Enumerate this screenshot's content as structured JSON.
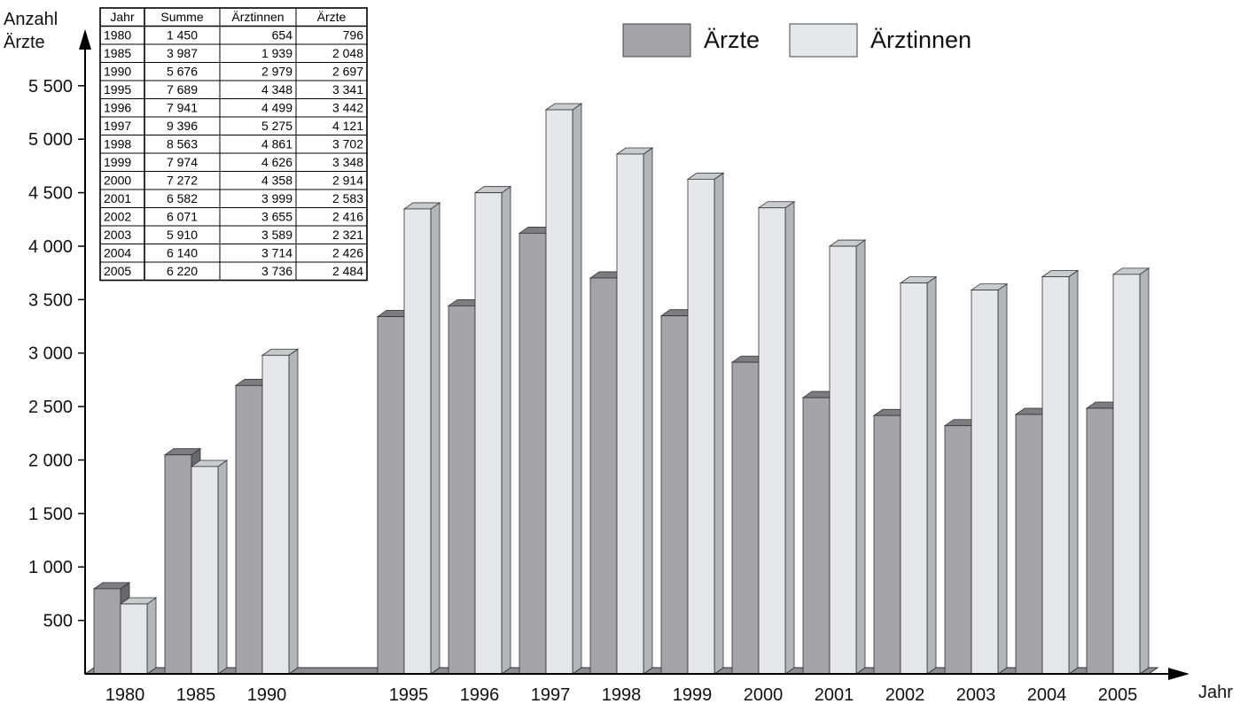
{
  "chart_data": {
    "type": "bar",
    "categories": [
      "1980",
      "1985",
      "1990",
      "1995",
      "1996",
      "1997",
      "1998",
      "1999",
      "2000",
      "2001",
      "2002",
      "2003",
      "2004",
      "2005"
    ],
    "series": [
      {
        "name": "Ärzte",
        "values": [
          796,
          2048,
          2697,
          3341,
          3442,
          4121,
          3702,
          3348,
          2914,
          2583,
          2416,
          2321,
          2426,
          2484
        ],
        "color": "#a4a4a8"
      },
      {
        "name": "Ärztinnen",
        "values": [
          654,
          1939,
          2979,
          4348,
          4499,
          5275,
          4861,
          4626,
          4358,
          3999,
          3655,
          3589,
          3714,
          3736
        ],
        "color": "#e6e7e9"
      }
    ],
    "ylabel_line1": "Anzahl",
    "ylabel_line2": "Ärzte",
    "xlabel": "Jahr",
    "ylim": [
      0,
      5500
    ],
    "yticks": [
      500,
      1000,
      1500,
      2000,
      2500,
      3000,
      3500,
      4000,
      4500,
      5000,
      5500
    ],
    "ytick_labels": [
      "500",
      "1 000",
      "1 500",
      "2 000",
      "2 500",
      "3 000",
      "3 500",
      "4 000",
      "4 500",
      "5 000",
      "5 500"
    ],
    "grid": false,
    "legend_position": "top-right",
    "table": {
      "headers": [
        "Jahr",
        "Summe",
        "Ärztinnen",
        "Ärzte"
      ],
      "rows": [
        [
          "1980",
          "1 450",
          "654",
          "796"
        ],
        [
          "1985",
          "3 987",
          "1 939",
          "2 048"
        ],
        [
          "1990",
          "5 676",
          "2 979",
          "2 697"
        ],
        [
          "1995",
          "7 689",
          "4 348",
          "3 341"
        ],
        [
          "1996",
          "7 941",
          "4 499",
          "3 442"
        ],
        [
          "1997",
          "9 396",
          "5 275",
          "4 121"
        ],
        [
          "1998",
          "8 563",
          "4 861",
          "3 702"
        ],
        [
          "1999",
          "7 974",
          "4 626",
          "3 348"
        ],
        [
          "2000",
          "7 272",
          "4 358",
          "2 914"
        ],
        [
          "2001",
          "6 582",
          "3 999",
          "2 583"
        ],
        [
          "2002",
          "6 071",
          "3 655",
          "2 416"
        ],
        [
          "2003",
          "5 910",
          "3 589",
          "2 321"
        ],
        [
          "2004",
          "6 140",
          "3 714",
          "2 426"
        ],
        [
          "2005",
          "6 220",
          "3 736",
          "2 484"
        ]
      ]
    }
  }
}
